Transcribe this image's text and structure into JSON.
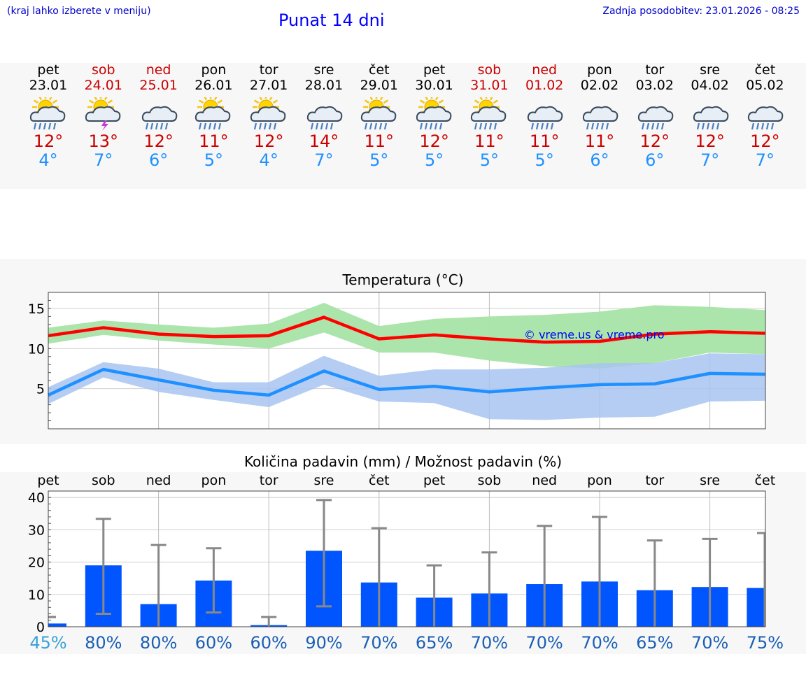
{
  "header": {
    "note": "(kraj lahko izberete v meniju)",
    "title": "Punat 14 dni",
    "updated": "Zadnja posodobitev: 23.01.2026 - 08:25"
  },
  "days": [
    {
      "name": "pet",
      "date": "23.01",
      "weekend": false,
      "icon": "sun-cloud-rain-icon",
      "max": "12°",
      "min": "4°"
    },
    {
      "name": "sob",
      "date": "24.01",
      "weekend": true,
      "icon": "sun-thunder-icon",
      "max": "13°",
      "min": "7°"
    },
    {
      "name": "ned",
      "date": "25.01",
      "weekend": true,
      "icon": "cloud-rain-icon",
      "max": "12°",
      "min": "6°"
    },
    {
      "name": "pon",
      "date": "26.01",
      "weekend": false,
      "icon": "sun-cloud-rain-icon",
      "max": "11°",
      "min": "5°"
    },
    {
      "name": "tor",
      "date": "27.01",
      "weekend": false,
      "icon": "sun-cloud-rain-icon",
      "max": "12°",
      "min": "4°"
    },
    {
      "name": "sre",
      "date": "28.01",
      "weekend": false,
      "icon": "cloud-rain-icon",
      "max": "14°",
      "min": "7°"
    },
    {
      "name": "čet",
      "date": "29.01",
      "weekend": false,
      "icon": "sun-cloud-rain-icon",
      "max": "11°",
      "min": "5°"
    },
    {
      "name": "pet",
      "date": "30.01",
      "weekend": false,
      "icon": "sun-cloud-rain-icon",
      "max": "12°",
      "min": "5°"
    },
    {
      "name": "sob",
      "date": "31.01",
      "weekend": true,
      "icon": "sun-cloud-rain-icon",
      "max": "11°",
      "min": "5°"
    },
    {
      "name": "ned",
      "date": "01.02",
      "weekend": true,
      "icon": "cloud-rain-icon",
      "max": "11°",
      "min": "5°"
    },
    {
      "name": "pon",
      "date": "02.02",
      "weekend": false,
      "icon": "cloud-rain-icon",
      "max": "11°",
      "min": "6°"
    },
    {
      "name": "tor",
      "date": "03.02",
      "weekend": false,
      "icon": "cloud-rain-icon",
      "max": "12°",
      "min": "6°"
    },
    {
      "name": "sre",
      "date": "04.02",
      "weekend": false,
      "icon": "cloud-rain-icon",
      "max": "12°",
      "min": "7°"
    },
    {
      "name": "čet",
      "date": "05.02",
      "weekend": false,
      "icon": "cloud-rain-icon",
      "max": "12°",
      "min": "7°"
    }
  ],
  "colors": {
    "max": "#ff0000",
    "max_band": "#a8e4a8",
    "min": "#1e90ff",
    "min_band": "#a8c4f0",
    "bar": "#0055ff",
    "whisker": "#888888",
    "pct": "#1a5fb4",
    "pct_first": "#3aa0d8"
  },
  "chart_data": [
    {
      "type": "line",
      "title": "Temperatura (°C)",
      "watermark": "© vreme.us & vreme.pro",
      "categories": [
        "pet",
        "sob",
        "ned",
        "pon",
        "tor",
        "sre",
        "čet",
        "pet",
        "sob",
        "ned",
        "pon",
        "tor",
        "sre",
        "čet"
      ],
      "ylim": [
        0,
        17
      ],
      "yticks": [
        5,
        10,
        15
      ],
      "series": [
        {
          "name": "max",
          "values": [
            11.6,
            12.6,
            11.8,
            11.5,
            11.6,
            13.9,
            11.2,
            11.7,
            11.2,
            10.8,
            10.9,
            11.8,
            12.1,
            11.9
          ],
          "band_low": [
            10.6,
            11.7,
            11.0,
            10.5,
            10.0,
            12.0,
            9.5,
            9.5,
            8.5,
            7.8,
            7.5,
            8.2,
            9.5,
            9.3
          ],
          "band_high": [
            12.6,
            13.5,
            13.0,
            12.6,
            13.1,
            15.7,
            12.8,
            13.7,
            14.0,
            14.2,
            14.6,
            15.4,
            15.2,
            14.8
          ]
        },
        {
          "name": "min",
          "values": [
            4.2,
            7.4,
            6.1,
            4.8,
            4.2,
            7.2,
            4.9,
            5.3,
            4.6,
            5.1,
            5.5,
            5.6,
            6.9,
            6.8
          ],
          "band_low": [
            3.1,
            6.4,
            4.6,
            3.6,
            2.7,
            5.5,
            3.4,
            3.2,
            1.2,
            1.1,
            1.4,
            1.5,
            3.4,
            3.5
          ],
          "band_high": [
            5.2,
            8.3,
            7.5,
            5.8,
            5.8,
            9.1,
            6.6,
            7.4,
            7.4,
            7.6,
            8.2,
            8.2,
            9.4,
            9.3
          ]
        }
      ]
    },
    {
      "type": "bar",
      "title": "Količina padavin (mm) / Možnost padavin (%)",
      "categories": [
        "pet",
        "sob",
        "ned",
        "pon",
        "tor",
        "sre",
        "čet",
        "pet",
        "sob",
        "ned",
        "pon",
        "tor",
        "sre",
        "čet"
      ],
      "ylim": [
        0,
        42
      ],
      "yticks": [
        0,
        10,
        20,
        30,
        40
      ],
      "values": [
        1.0,
        19.0,
        7.0,
        14.3,
        0.5,
        23.5,
        13.7,
        9.0,
        10.3,
        13.2,
        14.0,
        11.3,
        12.3,
        12.0
      ],
      "err_low": [
        3,
        4,
        null,
        4.4,
        null,
        6.3,
        null,
        null,
        null,
        null,
        null,
        null,
        null,
        null
      ],
      "err_high": [
        3,
        33.4,
        25.3,
        24.3,
        3,
        39.2,
        30.5,
        19,
        23,
        31.2,
        34,
        26.7,
        27.2,
        29
      ],
      "probability": [
        "45%",
        "80%",
        "80%",
        "60%",
        "60%",
        "90%",
        "70%",
        "65%",
        "70%",
        "70%",
        "70%",
        "65%",
        "70%",
        "75%"
      ]
    }
  ]
}
